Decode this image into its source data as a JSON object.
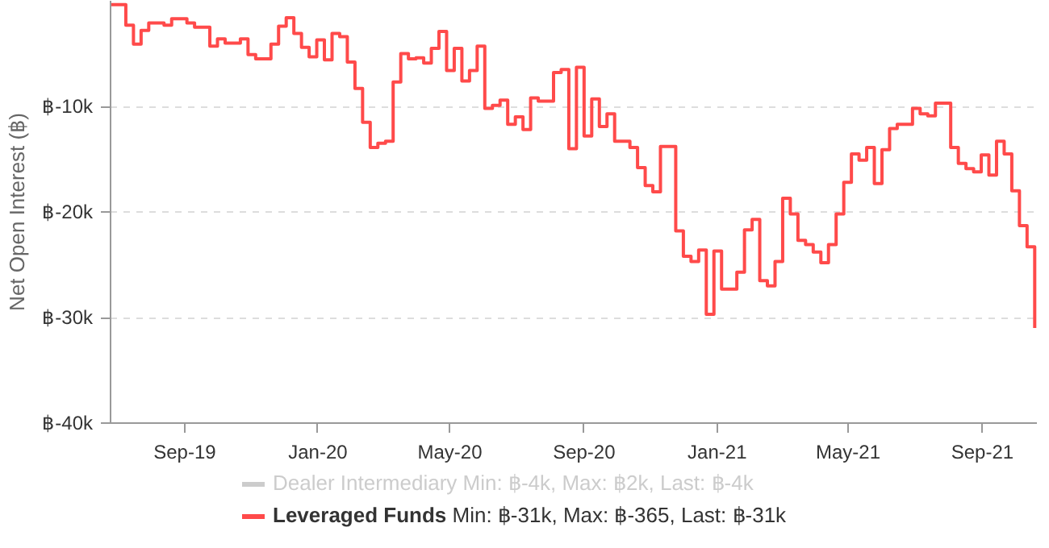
{
  "chart_data": {
    "type": "step",
    "ylabel": "Net Open Interest (฿)",
    "x": [
      "2019-06-25",
      "2019-07-09",
      "2019-07-16",
      "2019-07-23",
      "2019-07-30",
      "2019-08-13",
      "2019-08-20",
      "2019-09-03",
      "2019-09-10",
      "2019-09-24",
      "2019-10-01",
      "2019-10-08",
      "2019-10-22",
      "2019-10-29",
      "2019-11-05",
      "2019-11-19",
      "2019-11-26",
      "2019-12-03",
      "2019-12-10",
      "2019-12-17",
      "2019-12-24",
      "2019-12-31",
      "2020-01-07",
      "2020-01-14",
      "2020-01-21",
      "2020-01-28",
      "2020-02-04",
      "2020-02-11",
      "2020-02-18",
      "2020-02-25",
      "2020-03-03",
      "2020-03-10",
      "2020-03-17",
      "2020-03-24",
      "2020-03-31",
      "2020-04-07",
      "2020-04-14",
      "2020-04-21",
      "2020-04-28",
      "2020-05-05",
      "2020-05-12",
      "2020-05-19",
      "2020-05-26",
      "2020-06-02",
      "2020-06-09",
      "2020-06-16",
      "2020-06-23",
      "2020-06-30",
      "2020-07-07",
      "2020-07-14",
      "2020-07-21",
      "2020-08-04",
      "2020-08-11",
      "2020-08-18",
      "2020-08-25",
      "2020-09-01",
      "2020-09-08",
      "2020-09-15",
      "2020-09-22",
      "2020-09-29",
      "2020-10-13",
      "2020-10-20",
      "2020-10-27",
      "2020-11-03",
      "2020-11-10",
      "2020-11-24",
      "2020-12-01",
      "2020-12-08",
      "2020-12-15",
      "2020-12-22",
      "2020-12-29",
      "2021-01-05",
      "2021-01-19",
      "2021-01-26",
      "2021-02-02",
      "2021-02-09",
      "2021-02-16",
      "2021-02-23",
      "2021-03-02",
      "2021-03-09",
      "2021-03-16",
      "2021-03-23",
      "2021-03-30",
      "2021-04-06",
      "2021-04-13",
      "2021-04-20",
      "2021-04-27",
      "2021-05-04",
      "2021-05-11",
      "2021-05-18",
      "2021-05-25",
      "2021-06-01",
      "2021-06-08",
      "2021-06-15",
      "2021-06-29",
      "2021-07-06",
      "2021-07-13",
      "2021-07-20",
      "2021-08-03",
      "2021-08-10",
      "2021-08-17",
      "2021-08-24",
      "2021-08-31",
      "2021-09-07",
      "2021-09-14",
      "2021-09-21",
      "2021-09-28",
      "2021-10-05",
      "2021-10-12",
      "2021-10-19"
    ],
    "series": [
      {
        "name": "Leveraged Funds",
        "color": "#ff4a4a",
        "values": [
          -365,
          -2300,
          -4100,
          -2800,
          -2100,
          -2300,
          -1700,
          -2100,
          -2500,
          -4300,
          -3600,
          -4000,
          -3600,
          -5100,
          -5500,
          -4100,
          -2400,
          -1600,
          -3100,
          -4400,
          -5300,
          -3700,
          -5600,
          -3100,
          -3400,
          -5800,
          -8300,
          -11500,
          -13900,
          -13500,
          -13300,
          -7700,
          -5000,
          -5500,
          -5400,
          -5900,
          -4500,
          -2900,
          -6600,
          -4500,
          -7600,
          -6600,
          -4300,
          -10200,
          -9900,
          -9400,
          -11700,
          -11000,
          -12200,
          -9200,
          -9500,
          -6800,
          -6500,
          -14000,
          -6300,
          -12800,
          -9300,
          -11900,
          -10700,
          -13300,
          -13900,
          -15800,
          -17500,
          -18100,
          -13800,
          -21800,
          -24200,
          -24700,
          -23600,
          -29700,
          -23700,
          -27300,
          -25700,
          -21700,
          -20700,
          -26500,
          -27000,
          -24700,
          -18700,
          -20200,
          -22700,
          -23100,
          -23800,
          -24800,
          -23100,
          -20200,
          -17200,
          -14500,
          -15100,
          -13900,
          -17300,
          -14100,
          -12100,
          -11700,
          -10200,
          -10700,
          -10900,
          -9700,
          -13900,
          -15400,
          -15900,
          -16200,
          -14600,
          -16500,
          -13300,
          -14500,
          -18000,
          -21300,
          -23300,
          -31000
        ]
      }
    ],
    "xlim": [
      "2019-06-25",
      "2021-10-21"
    ],
    "xticks": [
      {
        "value": "2019-09-01",
        "label": "Sep-19"
      },
      {
        "value": "2020-01-01",
        "label": "Jan-20"
      },
      {
        "value": "2020-05-01",
        "label": "May-20"
      },
      {
        "value": "2020-09-01",
        "label": "Sep-20"
      },
      {
        "value": "2021-01-01",
        "label": "Jan-21"
      },
      {
        "value": "2021-05-01",
        "label": "May-21"
      },
      {
        "value": "2021-09-01",
        "label": "Sep-21"
      }
    ],
    "ylim": [
      -40000,
      0
    ],
    "yticks": [
      {
        "value": -40000,
        "label": "฿-40k"
      },
      {
        "value": -30000,
        "label": "฿-30k"
      },
      {
        "value": -20000,
        "label": "฿-20k"
      },
      {
        "value": -10000,
        "label": "฿-10k"
      }
    ],
    "grid": "y",
    "legend": "bottom",
    "annotations": [
      "Dealer Intermediary Min: ฿-4k, Max: ฿2k, Last: ฿-4k",
      "Min: ฿-31k, Max: ฿-365, Last: ฿-31k"
    ]
  }
}
